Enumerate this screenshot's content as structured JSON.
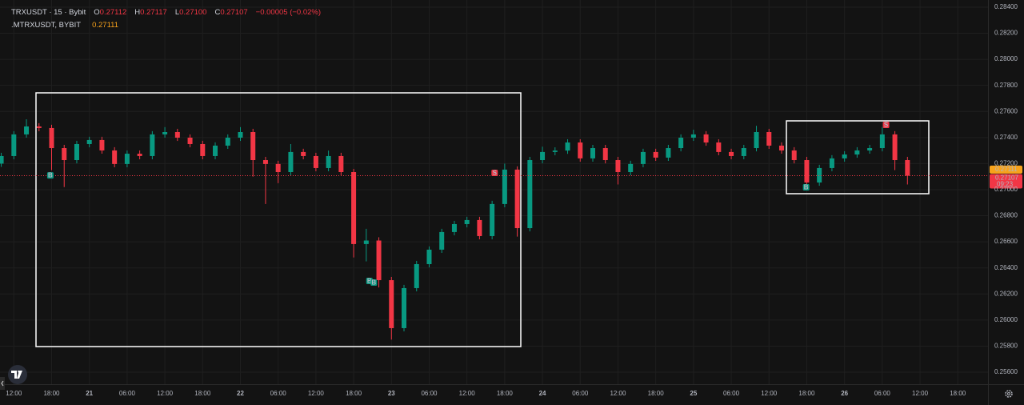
{
  "chart_data": {
    "type": "candlestick",
    "legend": {
      "symbol": "TRXUSDT · 15 · Bybit",
      "ohlc": [
        {
          "key": "O",
          "value": "0.27112"
        },
        {
          "key": "H",
          "value": "0.27117"
        },
        {
          "key": "L",
          "value": "0.27100"
        },
        {
          "key": "C",
          "value": "0.27107"
        }
      ],
      "change": "−0.00005 (−0.02%)",
      "index_symbol": ".MTRXUSDT, BYBIT",
      "index_value": "0.27111"
    },
    "up_color": "#089981",
    "down_color": "#f23645",
    "grid": true,
    "xlim": [
      9.8,
      166.8
    ],
    "ylim": [
      0.25508,
      0.28455
    ],
    "xticks": [
      {
        "value": 12,
        "label": "12:00"
      },
      {
        "value": 18,
        "label": "18:00"
      },
      {
        "value": 24,
        "label": "21"
      },
      {
        "value": 30,
        "label": "06:00"
      },
      {
        "value": 36,
        "label": "12:00"
      },
      {
        "value": 42,
        "label": "18:00"
      },
      {
        "value": 48,
        "label": "22"
      },
      {
        "value": 54,
        "label": "06:00"
      },
      {
        "value": 60,
        "label": "12:00"
      },
      {
        "value": 66,
        "label": "18:00"
      },
      {
        "value": 72,
        "label": "23"
      },
      {
        "value": 78,
        "label": "06:00"
      },
      {
        "value": 84,
        "label": "12:00"
      },
      {
        "value": 90,
        "label": "18:00"
      },
      {
        "value": 96,
        "label": "24"
      },
      {
        "value": 102,
        "label": "06:00"
      },
      {
        "value": 108,
        "label": "12:00"
      },
      {
        "value": 114,
        "label": "18:00"
      },
      {
        "value": 120,
        "label": "25"
      },
      {
        "value": 126,
        "label": "06:00"
      },
      {
        "value": 132,
        "label": "12:00"
      },
      {
        "value": 138,
        "label": "18:00"
      },
      {
        "value": 144,
        "label": "26"
      },
      {
        "value": 150,
        "label": "06:00"
      },
      {
        "value": 156,
        "label": "12:00"
      },
      {
        "value": 162,
        "label": "18:00"
      }
    ],
    "yticks": [
      {
        "value": 0.256,
        "label": "0.25600"
      },
      {
        "value": 0.258,
        "label": "0.25800"
      },
      {
        "value": 0.26,
        "label": "0.26000"
      },
      {
        "value": 0.262,
        "label": "0.26200"
      },
      {
        "value": 0.264,
        "label": "0.26400"
      },
      {
        "value": 0.266,
        "label": "0.26600"
      },
      {
        "value": 0.268,
        "label": "0.26800"
      },
      {
        "value": 0.27,
        "label": "0.27000"
      },
      {
        "value": 0.272,
        "label": "0.27200"
      },
      {
        "value": 0.274,
        "label": "0.27400"
      },
      {
        "value": 0.276,
        "label": "0.27600"
      },
      {
        "value": 0.278,
        "label": "0.27800"
      },
      {
        "value": 0.28,
        "label": "0.28000"
      },
      {
        "value": 0.282,
        "label": "0.28200"
      },
      {
        "value": 0.284,
        "label": "0.28400"
      }
    ],
    "x": [
      10,
      12,
      14,
      16,
      18,
      20,
      22,
      24,
      26,
      28,
      30,
      32,
      34,
      36,
      38,
      40,
      42,
      44,
      46,
      48,
      50,
      52,
      54,
      56,
      58,
      60,
      62,
      64,
      66,
      68,
      70,
      72,
      74,
      76,
      78,
      80,
      82,
      84,
      86,
      88,
      90,
      92,
      94,
      96,
      98,
      100,
      102,
      104,
      106,
      108,
      110,
      112,
      114,
      116,
      118,
      120,
      122,
      124,
      126,
      128,
      130,
      132,
      134,
      136,
      138,
      140,
      142,
      144,
      146,
      148,
      150,
      152,
      154
    ],
    "open": [
      0.272,
      0.27258,
      0.27424,
      0.27485,
      0.27473,
      0.27319,
      0.27227,
      0.2735,
      0.27381,
      0.27301,
      0.27197,
      0.27276,
      0.27258,
      0.27424,
      0.27442,
      0.27399,
      0.2735,
      0.27258,
      0.27338,
      0.27399,
      0.27442,
      0.27227,
      0.27197,
      0.27135,
      0.27289,
      0.27258,
      0.27166,
      0.27258,
      0.27135,
      0.26583,
      0.2661,
      0.26306,
      0.25938,
      0.26245,
      0.26429,
      0.2654,
      0.26675,
      0.26736,
      0.26767,
      0.26644,
      0.2689,
      0.27154,
      0.26705,
      0.27227,
      0.27289,
      0.273,
      0.27362,
      0.2724,
      0.27319,
      0.27227,
      0.27135,
      0.27197,
      0.27289,
      0.27246,
      0.27319,
      0.27399,
      0.27424,
      0.27362,
      0.27289,
      0.27258,
      0.27319,
      0.27442,
      0.27338,
      0.27301,
      0.27227,
      0.27055,
      0.27166,
      0.2724,
      0.2727,
      0.27301,
      0.27319,
      0.27424,
      0.27227
    ],
    "high": [
      0.27283,
      0.27449,
      0.2754,
      0.2751,
      0.27498,
      0.27344,
      0.27375,
      0.27406,
      0.27406,
      0.27326,
      0.27301,
      0.27301,
      0.27449,
      0.2748,
      0.27467,
      0.27424,
      0.27375,
      0.27363,
      0.27424,
      0.2748,
      0.27467,
      0.27252,
      0.27222,
      0.2735,
      0.27314,
      0.27283,
      0.273,
      0.27283,
      0.2716,
      0.267,
      0.26635,
      0.26331,
      0.2627,
      0.26454,
      0.26565,
      0.267,
      0.26761,
      0.26792,
      0.26792,
      0.26915,
      0.272,
      0.27179,
      0.27252,
      0.2733,
      0.27325,
      0.27387,
      0.27387,
      0.27344,
      0.27344,
      0.27252,
      0.27222,
      0.27314,
      0.27314,
      0.27344,
      0.27424,
      0.2746,
      0.27449,
      0.27387,
      0.27314,
      0.27344,
      0.2749,
      0.27467,
      0.27363,
      0.27326,
      0.27252,
      0.27191,
      0.27265,
      0.27295,
      0.27326,
      0.27344,
      0.2748,
      0.27449,
      0.27252
    ],
    "low": [
      0.27175,
      0.27233,
      0.27399,
      0.27448,
      0.2715,
      0.2702,
      0.27202,
      0.27325,
      0.27276,
      0.27172,
      0.27172,
      0.27233,
      0.27233,
      0.27399,
      0.27374,
      0.27325,
      0.27233,
      0.27233,
      0.27313,
      0.27374,
      0.271,
      0.2689,
      0.2705,
      0.2711,
      0.27233,
      0.27141,
      0.27141,
      0.2711,
      0.2648,
      0.2645,
      0.2625,
      0.2585,
      0.25913,
      0.2622,
      0.26404,
      0.26515,
      0.2665,
      0.26711,
      0.26619,
      0.26619,
      0.26865,
      0.2664,
      0.2668,
      0.27202,
      0.27264,
      0.27275,
      0.27215,
      0.27215,
      0.27202,
      0.2704,
      0.2711,
      0.27172,
      0.27221,
      0.27221,
      0.27294,
      0.27374,
      0.27337,
      0.27264,
      0.27233,
      0.27233,
      0.27294,
      0.27313,
      0.27276,
      0.27202,
      0.2702,
      0.2703,
      0.27141,
      0.27215,
      0.27245,
      0.27276,
      0.27294,
      0.2715,
      0.2704
    ],
    "close": [
      0.27258,
      0.27424,
      0.27485,
      0.27473,
      0.27319,
      0.27227,
      0.2735,
      0.27381,
      0.27301,
      0.27197,
      0.27276,
      0.27258,
      0.27424,
      0.27442,
      0.27399,
      0.2735,
      0.27258,
      0.27338,
      0.27399,
      0.27442,
      0.27227,
      0.27197,
      0.27135,
      0.27289,
      0.27258,
      0.27166,
      0.27258,
      0.27135,
      0.26583,
      0.2661,
      0.26306,
      0.25938,
      0.26245,
      0.26429,
      0.2654,
      0.26675,
      0.26736,
      0.26767,
      0.26644,
      0.2689,
      0.27154,
      0.26705,
      0.27227,
      0.27289,
      0.273,
      0.27362,
      0.2724,
      0.27319,
      0.27227,
      0.27135,
      0.27197,
      0.27289,
      0.27246,
      0.27319,
      0.27399,
      0.27424,
      0.27362,
      0.27289,
      0.27258,
      0.27319,
      0.27442,
      0.27338,
      0.27301,
      0.27227,
      0.27055,
      0.27166,
      0.2724,
      0.2727,
      0.27301,
      0.27319,
      0.27424,
      0.27227,
      0.27107
    ],
    "signals": [
      {
        "label": "B",
        "x": 17.8,
        "price": 0.2711
      },
      {
        "label": "B",
        "x": 68.5,
        "price": 0.263
      },
      {
        "label": "B",
        "x": 69.2,
        "price": 0.26288
      },
      {
        "label": "S",
        "x": 88.4,
        "price": 0.27129
      },
      {
        "label": "B",
        "x": 137.9,
        "price": 0.27018
      },
      {
        "label": "S",
        "x": 150.6,
        "price": 0.27497
      }
    ],
    "index_price": {
      "value": 0.27111,
      "label": "0.27111"
    },
    "last_price": {
      "value": 0.27107,
      "label": "0.27107"
    },
    "countdown": "09:23"
  }
}
